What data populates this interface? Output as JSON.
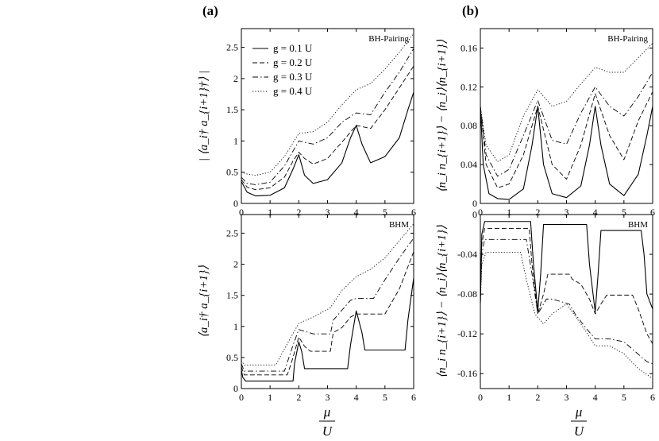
{
  "panel_labels": [
    "(a)",
    "(b)"
  ],
  "x_axis": {
    "numerator": "μ",
    "denominator": "U"
  },
  "chart_data": [
    {
      "type": "line",
      "title": "BH-Pairing",
      "ylabel": "| ⟨a_i† a_{i+1}†⟩ |",
      "xlim": [
        0,
        6
      ],
      "ylim": [
        0,
        2.8
      ],
      "xticks": [
        "0",
        "1",
        "2",
        "3",
        "4",
        "5",
        "6"
      ],
      "yticks": [
        {
          "v": 0,
          "t": "0"
        },
        {
          "v": 0.5,
          "t": "0.5"
        },
        {
          "v": 1,
          "t": "1"
        },
        {
          "v": 1.5,
          "t": "1.5"
        },
        {
          "v": 2,
          "t": "2"
        },
        {
          "v": 2.5,
          "t": "2.5"
        }
      ],
      "legend": [
        "g = 0.1 U",
        "g = 0.2 U",
        "g = 0.3 U",
        "g = 0.4 U"
      ],
      "series": [
        {
          "name": "g = 0.1 U",
          "x": [
            0,
            0.2,
            0.5,
            1,
            1.5,
            1.8,
            2,
            2.2,
            2.5,
            3,
            3.5,
            3.8,
            4,
            4.2,
            4.5,
            5,
            5.5,
            5.8,
            6
          ],
          "y": [
            0.35,
            0.18,
            0.12,
            0.13,
            0.25,
            0.55,
            0.78,
            0.45,
            0.32,
            0.38,
            0.65,
            1.05,
            1.25,
            0.95,
            0.65,
            0.75,
            1.05,
            1.5,
            1.78
          ]
        },
        {
          "name": "g = 0.2 U",
          "x": [
            0,
            0.2,
            0.5,
            1,
            1.5,
            1.8,
            2,
            2.2,
            2.5,
            3,
            3.5,
            4,
            4.5,
            5,
            5.5,
            6
          ],
          "y": [
            0.38,
            0.26,
            0.22,
            0.25,
            0.42,
            0.68,
            0.82,
            0.72,
            0.63,
            0.72,
            0.98,
            1.25,
            1.2,
            1.5,
            1.85,
            2.2
          ]
        },
        {
          "name": "g = 0.3 U",
          "x": [
            0,
            0.2,
            0.5,
            1,
            1.5,
            2,
            2.5,
            3,
            3.5,
            4,
            4.5,
            5,
            5.5,
            6
          ],
          "y": [
            0.42,
            0.32,
            0.3,
            0.34,
            0.6,
            1.0,
            0.95,
            1.05,
            1.3,
            1.45,
            1.42,
            1.78,
            2.1,
            2.48
          ]
        },
        {
          "name": "g = 0.4 U",
          "x": [
            0,
            0.2,
            0.5,
            1,
            1.5,
            2,
            2.5,
            3,
            3.5,
            4,
            4.5,
            5,
            5.5,
            6
          ],
          "y": [
            0.5,
            0.47,
            0.45,
            0.5,
            0.75,
            1.12,
            1.15,
            1.3,
            1.58,
            1.82,
            1.92,
            2.15,
            2.42,
            2.72
          ]
        }
      ]
    },
    {
      "type": "line",
      "title": "BH-Pairing",
      "ylabel": "⟨n_i n_{i+1}⟩ − ⟨n_i⟩⟨n_{i+1}⟩",
      "xlim": [
        0,
        6
      ],
      "ylim": [
        0,
        0.18
      ],
      "xticks": [
        "0",
        "1",
        "2",
        "3",
        "4",
        "5",
        "6"
      ],
      "yticks": [
        {
          "v": 0,
          "t": "0"
        },
        {
          "v": 0.04,
          "t": "0.04"
        },
        {
          "v": 0.08,
          "t": "0.08"
        },
        {
          "v": 0.12,
          "t": "0.12"
        },
        {
          "v": 0.16,
          "t": "0.16"
        }
      ],
      "series": [
        {
          "name": "g = 0.1 U",
          "x": [
            0,
            0.1,
            0.3,
            0.6,
            1,
            1.5,
            1.8,
            2,
            2.2,
            2.5,
            3,
            3.5,
            3.8,
            4,
            4.2,
            4.5,
            5,
            5.5,
            5.8,
            6
          ],
          "y": [
            0.1,
            0.04,
            0.01,
            0.005,
            0.004,
            0.015,
            0.06,
            0.1,
            0.04,
            0.01,
            0.006,
            0.018,
            0.06,
            0.1,
            0.06,
            0.02,
            0.008,
            0.03,
            0.07,
            0.1
          ]
        },
        {
          "name": "g = 0.2 U",
          "x": [
            0,
            0.2,
            0.6,
            1,
            1.5,
            2,
            2.5,
            3,
            3.5,
            4,
            4.5,
            5,
            5.5,
            6
          ],
          "y": [
            0.1,
            0.04,
            0.016,
            0.02,
            0.05,
            0.1,
            0.04,
            0.025,
            0.06,
            0.113,
            0.07,
            0.045,
            0.085,
            0.115
          ]
        },
        {
          "name": "g = 0.3 U",
          "x": [
            0,
            0.2,
            0.6,
            1,
            1.5,
            2,
            2.5,
            3,
            3.5,
            4,
            4.5,
            5,
            5.5,
            6
          ],
          "y": [
            0.1,
            0.05,
            0.028,
            0.035,
            0.07,
            0.106,
            0.065,
            0.061,
            0.093,
            0.12,
            0.1,
            0.09,
            0.11,
            0.135
          ]
        },
        {
          "name": "g = 0.4 U",
          "x": [
            0,
            0.2,
            0.6,
            1,
            1.5,
            2,
            2.5,
            3,
            3.5,
            4,
            4.5,
            5,
            5.5,
            6
          ],
          "y": [
            0.1,
            0.06,
            0.043,
            0.05,
            0.09,
            0.117,
            0.1,
            0.105,
            0.123,
            0.14,
            0.135,
            0.135,
            0.15,
            0.165
          ]
        }
      ]
    },
    {
      "type": "line",
      "title": "BHM",
      "ylabel": "⟨a_i† a_{i+1}⟩",
      "xlim": [
        0,
        6
      ],
      "ylim": [
        0,
        2.8
      ],
      "xticks": [
        "0",
        "1",
        "2",
        "3",
        "4",
        "5",
        "6"
      ],
      "yticks": [
        {
          "v": 0,
          "t": "0"
        },
        {
          "v": 0.5,
          "t": "0.5"
        },
        {
          "v": 1,
          "t": "1"
        },
        {
          "v": 1.5,
          "t": "1.5"
        },
        {
          "v": 2,
          "t": "2"
        },
        {
          "v": 2.5,
          "t": "2.5"
        }
      ],
      "series": [
        {
          "name": "g = 0.1 U",
          "x": [
            0,
            0.05,
            0.15,
            0.3,
            1.8,
            1.85,
            2,
            2.1,
            2.2,
            2.3,
            3.7,
            3.8,
            4,
            4.2,
            4.3,
            5.7,
            5.8,
            6
          ],
          "y": [
            0.3,
            0.18,
            0.12,
            0.12,
            0.12,
            0.4,
            0.75,
            0.6,
            0.32,
            0.32,
            0.32,
            0.7,
            1.25,
            0.9,
            0.62,
            0.62,
            1.1,
            1.78
          ]
        },
        {
          "name": "g = 0.2 U",
          "x": [
            0,
            0.1,
            0.3,
            1.6,
            1.8,
            2,
            2.2,
            2.4,
            2.5,
            3.1,
            3.2,
            3.5,
            3.8,
            4,
            4.3,
            5,
            5.5,
            6
          ],
          "y": [
            0.35,
            0.22,
            0.22,
            0.22,
            0.5,
            0.83,
            0.68,
            0.6,
            0.6,
            0.6,
            0.9,
            0.98,
            1.15,
            1.2,
            1.2,
            1.2,
            1.6,
            2.2
          ]
        },
        {
          "name": "g = 0.3 U",
          "x": [
            0,
            0.1,
            0.3,
            1.5,
            1.8,
            2,
            2.5,
            2.6,
            3.1,
            3.2,
            3.8,
            4,
            4.3,
            4.6,
            5,
            5.5,
            6
          ],
          "y": [
            0.4,
            0.28,
            0.28,
            0.28,
            0.7,
            0.95,
            0.88,
            0.88,
            0.88,
            1.1,
            1.42,
            1.45,
            1.45,
            1.45,
            1.75,
            2.1,
            2.42
          ]
        },
        {
          "name": "g = 0.4 U",
          "x": [
            0,
            0.1,
            0.3,
            1.2,
            1.6,
            2,
            2.5,
            2.7,
            3.1,
            3.5,
            4,
            4.5,
            5,
            5.5,
            6
          ],
          "y": [
            0.45,
            0.38,
            0.38,
            0.38,
            0.72,
            1.05,
            1.15,
            1.2,
            1.3,
            1.58,
            1.8,
            1.92,
            2.1,
            2.38,
            2.65
          ]
        }
      ]
    },
    {
      "type": "line",
      "title": "BHM",
      "ylabel": "⟨n_i n_{i+1}⟩ − ⟨n_i⟩⟨n_{i+1}⟩",
      "xlim": [
        0,
        6
      ],
      "ylim": [
        -0.175,
        0
      ],
      "xticks": [
        "0",
        "1",
        "2",
        "3",
        "4",
        "5",
        "6"
      ],
      "yticks": [
        {
          "v": 0,
          "t": "0"
        },
        {
          "v": -0.04,
          "t": "-0.04"
        },
        {
          "v": -0.08,
          "t": "-0.08"
        },
        {
          "v": -0.12,
          "t": "-0.12"
        },
        {
          "v": -0.16,
          "t": "-0.16"
        }
      ],
      "series": [
        {
          "name": "g = 0.1 U",
          "x": [
            0,
            0.05,
            0.15,
            1.75,
            1.85,
            2,
            2.1,
            2.2,
            3.7,
            3.8,
            4,
            4.1,
            4.2,
            5.6,
            5.7,
            5.8,
            6
          ],
          "y": [
            -0.09,
            -0.02,
            -0.007,
            -0.007,
            -0.05,
            -0.097,
            -0.06,
            -0.01,
            -0.01,
            -0.05,
            -0.098,
            -0.06,
            -0.016,
            -0.016,
            -0.04,
            -0.08,
            -0.095
          ]
        },
        {
          "name": "g = 0.2 U",
          "x": [
            0,
            0.05,
            0.15,
            1.7,
            1.8,
            2,
            2.2,
            2.35,
            3.1,
            3.2,
            3.5,
            3.8,
            4,
            4.2,
            4.4,
            5.3,
            5.5,
            5.8,
            6
          ],
          "y": [
            -0.09,
            -0.03,
            -0.014,
            -0.014,
            -0.05,
            -0.1,
            -0.08,
            -0.06,
            -0.06,
            -0.065,
            -0.07,
            -0.085,
            -0.1,
            -0.09,
            -0.081,
            -0.081,
            -0.095,
            -0.12,
            -0.13
          ]
        },
        {
          "name": "g = 0.3 U",
          "x": [
            0,
            0.05,
            0.15,
            1.6,
            1.8,
            2,
            2.3,
            2.5,
            3.1,
            3.3,
            3.7,
            4,
            4.2,
            4.5,
            5,
            5.4,
            5.8,
            6
          ],
          "y": [
            -0.09,
            -0.04,
            -0.025,
            -0.025,
            -0.06,
            -0.1,
            -0.085,
            -0.085,
            -0.09,
            -0.1,
            -0.115,
            -0.125,
            -0.125,
            -0.125,
            -0.128,
            -0.138,
            -0.148,
            -0.15
          ]
        },
        {
          "name": "g = 0.4 U",
          "x": [
            0,
            0.05,
            0.2,
            1.4,
            1.6,
            1.9,
            2.2,
            2.5,
            3,
            3.5,
            4,
            4.5,
            5,
            5.5,
            6
          ],
          "y": [
            -0.09,
            -0.05,
            -0.038,
            -0.038,
            -0.065,
            -0.1,
            -0.11,
            -0.1,
            -0.09,
            -0.11,
            -0.132,
            -0.132,
            -0.14,
            -0.155,
            -0.165
          ]
        }
      ]
    }
  ]
}
